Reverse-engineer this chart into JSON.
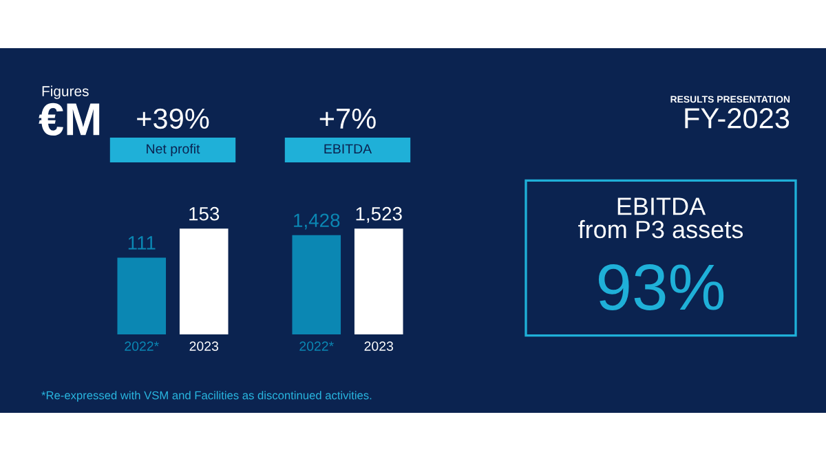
{
  "chart_data": [
    {
      "type": "other",
      "subtitle": "Figures",
      "title": "€M",
      "annotations": [
        "RESULTS PRESENTATION",
        "FY-2023",
        "*Re-expressed with VSM and Facilities as discontinued activities."
      ]
    },
    {
      "type": "bar",
      "title": "+39%",
      "subtitle": "Net profit",
      "categories": [
        "2022*",
        "2023"
      ],
      "values": [
        111,
        153
      ],
      "colors": [
        "#0b87b3",
        "#ffffff"
      ],
      "value_labels": [
        "111",
        "153"
      ],
      "tick_labels": "x"
    },
    {
      "type": "bar",
      "title": "+7%",
      "subtitle": "EBITDA",
      "categories": [
        "2022*",
        "2023"
      ],
      "values": [
        1428,
        1523
      ],
      "colors": [
        "#0b87b3",
        "#ffffff"
      ],
      "value_labels": [
        "1,428",
        "1,523"
      ],
      "tick_labels": "x"
    },
    {
      "type": "other",
      "title": "EBITDA\nfrom P3 assets",
      "annotations": [
        "93%"
      ]
    }
  ]
}
